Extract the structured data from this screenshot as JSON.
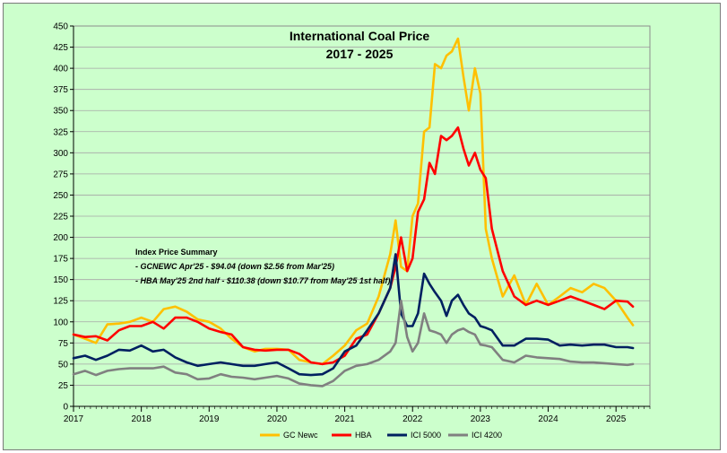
{
  "chart_data": {
    "type": "line",
    "title": "International Coal Price",
    "subtitle": "2017 - 2025",
    "ylim": [
      0,
      450
    ],
    "yticks": [
      0,
      25,
      50,
      75,
      100,
      125,
      150,
      175,
      200,
      225,
      250,
      275,
      300,
      325,
      350,
      375,
      400,
      425,
      450
    ],
    "xlim": [
      2017,
      2025.5
    ],
    "xticks": [
      "2017",
      "2018",
      "2019",
      "2020",
      "2021",
      "2022",
      "2023",
      "2024",
      "2025"
    ],
    "grid": true,
    "legend_position": "bottom",
    "annotation": {
      "heading": "Index Price Summary",
      "lines": [
        "- GCNEWC Apr'25 - $94.04 (down $2.56 from Mar'25)",
        "- HBA May'25 2nd half - $110.38 (down $10.77 from May'25 1st half)"
      ]
    },
    "series": [
      {
        "name": "GC Newc",
        "color": "#ffc000",
        "x": [
          2017.0,
          2017.17,
          2017.33,
          2017.5,
          2017.67,
          2017.83,
          2018.0,
          2018.17,
          2018.33,
          2018.5,
          2018.67,
          2018.83,
          2019.0,
          2019.17,
          2019.33,
          2019.5,
          2019.67,
          2019.83,
          2020.0,
          2020.17,
          2020.33,
          2020.5,
          2020.67,
          2020.83,
          2021.0,
          2021.17,
          2021.33,
          2021.5,
          2021.67,
          2021.75,
          2021.83,
          2021.92,
          2022.0,
          2022.08,
          2022.17,
          2022.25,
          2022.33,
          2022.42,
          2022.5,
          2022.58,
          2022.67,
          2022.75,
          2022.83,
          2022.92,
          2023.0,
          2023.08,
          2023.17,
          2023.33,
          2023.5,
          2023.67,
          2023.83,
          2024.0,
          2024.17,
          2024.33,
          2024.5,
          2024.67,
          2024.83,
          2025.0,
          2025.17,
          2025.25
        ],
        "values": [
          85,
          80,
          75,
          97,
          98,
          100,
          105,
          100,
          115,
          118,
          112,
          103,
          100,
          92,
          80,
          70,
          65,
          68,
          68,
          67,
          55,
          52,
          50,
          60,
          72,
          90,
          98,
          130,
          180,
          220,
          165,
          160,
          225,
          240,
          325,
          330,
          405,
          400,
          415,
          420,
          435,
          390,
          350,
          400,
          370,
          210,
          175,
          130,
          155,
          120,
          145,
          120,
          130,
          140,
          135,
          145,
          140,
          125,
          105,
          96
        ]
      },
      {
        "name": "HBA",
        "color": "#ff0000",
        "x": [
          2017.0,
          2017.17,
          2017.33,
          2017.5,
          2017.67,
          2017.83,
          2018.0,
          2018.17,
          2018.33,
          2018.5,
          2018.67,
          2018.83,
          2019.0,
          2019.17,
          2019.33,
          2019.5,
          2019.67,
          2019.83,
          2020.0,
          2020.17,
          2020.33,
          2020.5,
          2020.67,
          2020.83,
          2021.0,
          2021.17,
          2021.33,
          2021.5,
          2021.67,
          2021.75,
          2021.83,
          2021.92,
          2022.0,
          2022.08,
          2022.17,
          2022.25,
          2022.33,
          2022.42,
          2022.5,
          2022.58,
          2022.67,
          2022.75,
          2022.83,
          2022.92,
          2023.0,
          2023.08,
          2023.17,
          2023.33,
          2023.5,
          2023.67,
          2023.83,
          2024.0,
          2024.17,
          2024.33,
          2024.5,
          2024.67,
          2024.83,
          2025.0,
          2025.17,
          2025.25
        ],
        "values": [
          85,
          82,
          83,
          78,
          90,
          95,
          95,
          100,
          92,
          105,
          105,
          100,
          92,
          88,
          85,
          70,
          67,
          66,
          67,
          67,
          62,
          52,
          50,
          52,
          60,
          80,
          85,
          110,
          140,
          165,
          200,
          160,
          175,
          230,
          245,
          288,
          275,
          320,
          315,
          320,
          330,
          305,
          285,
          300,
          280,
          270,
          210,
          160,
          130,
          120,
          125,
          120,
          125,
          130,
          125,
          120,
          115,
          125,
          124,
          118
        ]
      },
      {
        "name": "ICI 5000",
        "color": "#002060",
        "x": [
          2017.0,
          2017.17,
          2017.33,
          2017.5,
          2017.67,
          2017.83,
          2018.0,
          2018.17,
          2018.33,
          2018.5,
          2018.67,
          2018.83,
          2019.0,
          2019.17,
          2019.33,
          2019.5,
          2019.67,
          2019.83,
          2020.0,
          2020.17,
          2020.33,
          2020.5,
          2020.67,
          2020.83,
          2021.0,
          2021.17,
          2021.33,
          2021.5,
          2021.67,
          2021.75,
          2021.83,
          2021.92,
          2022.0,
          2022.08,
          2022.17,
          2022.25,
          2022.33,
          2022.42,
          2022.5,
          2022.58,
          2022.67,
          2022.75,
          2022.83,
          2022.92,
          2023.0,
          2023.08,
          2023.17,
          2023.33,
          2023.5,
          2023.67,
          2023.83,
          2024.0,
          2024.17,
          2024.33,
          2024.5,
          2024.67,
          2024.83,
          2025.0,
          2025.17,
          2025.25
        ],
        "values": [
          57,
          60,
          55,
          60,
          67,
          66,
          72,
          65,
          67,
          58,
          52,
          48,
          50,
          52,
          50,
          48,
          48,
          50,
          52,
          45,
          38,
          37,
          38,
          45,
          65,
          72,
          90,
          110,
          140,
          180,
          110,
          95,
          95,
          110,
          157,
          145,
          135,
          125,
          107,
          125,
          132,
          120,
          110,
          105,
          95,
          93,
          90,
          72,
          72,
          80,
          80,
          79,
          72,
          73,
          72,
          73,
          73,
          70,
          70,
          69
        ]
      },
      {
        "name": "ICI 4200",
        "color": "#808080",
        "x": [
          2017.0,
          2017.17,
          2017.33,
          2017.5,
          2017.67,
          2017.83,
          2018.0,
          2018.17,
          2018.33,
          2018.5,
          2018.67,
          2018.83,
          2019.0,
          2019.17,
          2019.33,
          2019.5,
          2019.67,
          2019.83,
          2020.0,
          2020.17,
          2020.33,
          2020.5,
          2020.67,
          2020.83,
          2021.0,
          2021.17,
          2021.33,
          2021.5,
          2021.67,
          2021.75,
          2021.83,
          2021.92,
          2022.0,
          2022.08,
          2022.17,
          2022.25,
          2022.33,
          2022.42,
          2022.5,
          2022.58,
          2022.67,
          2022.75,
          2022.83,
          2022.92,
          2023.0,
          2023.08,
          2023.17,
          2023.33,
          2023.5,
          2023.67,
          2023.83,
          2024.0,
          2024.17,
          2024.33,
          2024.5,
          2024.67,
          2024.83,
          2025.0,
          2025.17,
          2025.25
        ],
        "values": [
          38,
          42,
          37,
          42,
          44,
          45,
          45,
          45,
          47,
          40,
          38,
          32,
          33,
          38,
          35,
          34,
          32,
          34,
          36,
          33,
          27,
          25,
          24,
          30,
          42,
          48,
          50,
          55,
          65,
          75,
          125,
          82,
          65,
          75,
          110,
          90,
          88,
          85,
          75,
          85,
          90,
          92,
          88,
          85,
          73,
          72,
          70,
          55,
          52,
          60,
          58,
          57,
          56,
          53,
          52,
          52,
          51,
          50,
          49,
          50
        ]
      }
    ]
  }
}
